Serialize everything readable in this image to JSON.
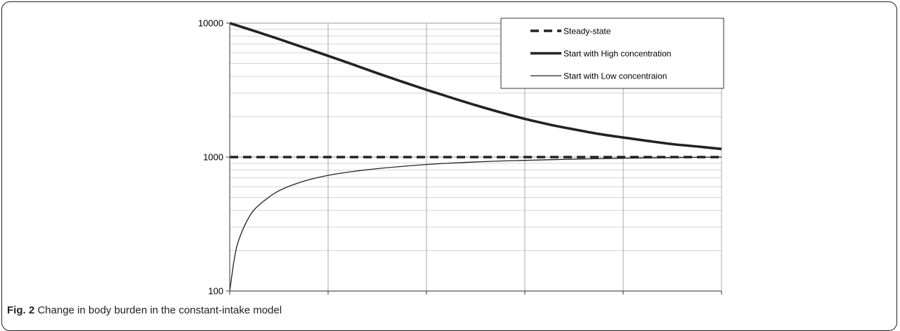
{
  "chart_data": {
    "type": "line",
    "yscale": "log",
    "ylim": [
      100,
      10000
    ],
    "y_ticks": [
      "10000",
      "1000",
      "100"
    ],
    "x_divisions": 5,
    "grid": true,
    "legend_position": "top-right",
    "legend": [
      {
        "label": "Steady-state",
        "style": "dashed",
        "weight": "thick"
      },
      {
        "label": "Start with High concentration",
        "style": "solid",
        "weight": "thick"
      },
      {
        "label": "Start with Low concentraion",
        "style": "solid",
        "weight": "thin"
      }
    ],
    "series": [
      {
        "name": "Steady-state",
        "x": [
          0,
          0.5,
          1,
          1.5,
          2,
          2.5,
          3,
          3.5,
          4,
          4.5,
          5
        ],
        "y": [
          1000,
          1000,
          1000,
          1000,
          1000,
          1000,
          1000,
          1000,
          1000,
          1000,
          1000
        ]
      },
      {
        "name": "Start with High concentration",
        "x": [
          0,
          0.25,
          0.5,
          0.75,
          1,
          1.25,
          1.5,
          1.75,
          2,
          2.25,
          2.5,
          2.75,
          3,
          3.25,
          3.5,
          3.75,
          4,
          4.25,
          4.5,
          4.75,
          5
        ],
        "y": [
          10000,
          8740,
          7610,
          6580,
          5700,
          4920,
          4230,
          3660,
          3180,
          2780,
          2440,
          2160,
          1930,
          1750,
          1610,
          1490,
          1400,
          1320,
          1250,
          1200,
          1150
        ]
      },
      {
        "name": "Start with Low concentraion",
        "x": [
          0,
          0.05,
          0.1,
          0.2,
          0.3,
          0.5,
          0.75,
          1,
          1.25,
          1.5,
          2,
          2.5,
          3,
          3.5,
          4,
          4.5,
          5
        ],
        "y": [
          100,
          180,
          250,
          360,
          440,
          560,
          660,
          730,
          780,
          820,
          880,
          920,
          945,
          965,
          980,
          990,
          1000
        ]
      }
    ]
  },
  "caption": {
    "label": "Fig. 2",
    "text": " Change in body burden in the constant-intake model"
  }
}
